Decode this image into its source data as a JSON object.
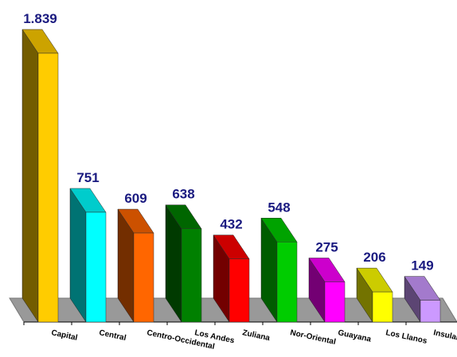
{
  "chart_data": {
    "type": "bar3d",
    "categories": [
      "Capital",
      "Central",
      "Centro-Occidental",
      "Los Andes",
      "Zuliana",
      "Nor-Oriental",
      "Guayana",
      "Los Llanos",
      "Insular"
    ],
    "values": [
      1839,
      751,
      609,
      638,
      432,
      548,
      275,
      206,
      149
    ],
    "value_labels": [
      "1.839",
      "751",
      "609",
      "638",
      "432",
      "548",
      "275",
      "206",
      "149"
    ],
    "colors": [
      "#ffcc00",
      "#00ffff",
      "#ff6600",
      "#008000",
      "#ff0000",
      "#00cc00",
      "#ff00ff",
      "#ffff00",
      "#cc99ff"
    ]
  }
}
